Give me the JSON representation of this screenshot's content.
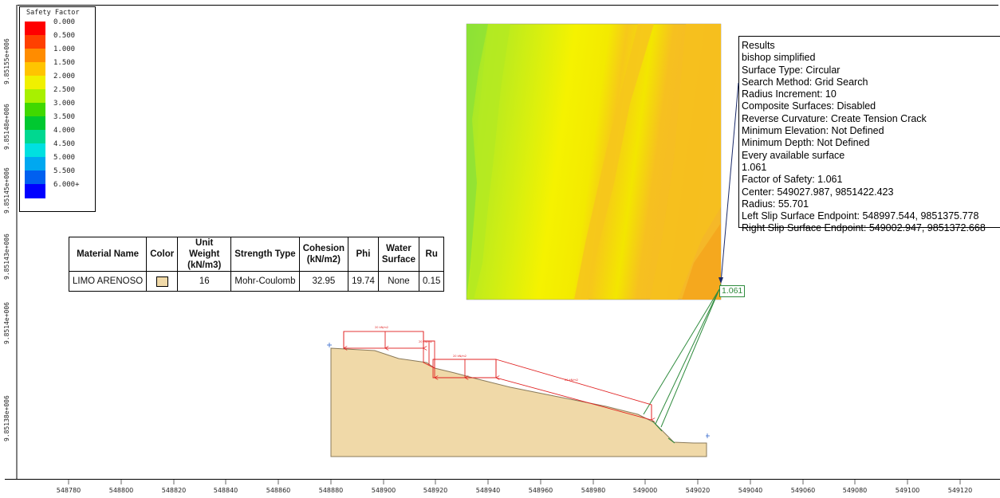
{
  "legend": {
    "title": "Safety Factor",
    "items": [
      {
        "label": "0.000",
        "color": "#ff0000"
      },
      {
        "label": "0.500",
        "color": "#ff4000"
      },
      {
        "label": "1.000",
        "color": "#ff8c00"
      },
      {
        "label": "1.500",
        "color": "#ffc400"
      },
      {
        "label": "2.000",
        "color": "#f0f000"
      },
      {
        "label": "2.500",
        "color": "#a8f000"
      },
      {
        "label": "3.000",
        "color": "#40d800"
      },
      {
        "label": "3.500",
        "color": "#00c830"
      },
      {
        "label": "4.000",
        "color": "#00d890"
      },
      {
        "label": "4.500",
        "color": "#00e0e0"
      },
      {
        "label": "5.000",
        "color": "#00a8f0"
      },
      {
        "label": "5.500",
        "color": "#0060f0"
      },
      {
        "label": "6.000+",
        "color": "#0000ff"
      }
    ]
  },
  "material_table": {
    "headers": [
      "Material Name",
      "Color",
      "Unit Weight (kN/m3)",
      "Strength Type",
      "Cohesion (kN/m2)",
      "Phi",
      "Water Surface",
      "Ru"
    ],
    "rows": [
      {
        "name": "LIMO ARENOSO",
        "color": "#f0d9a8",
        "unit_weight": "16",
        "strength_type": "Mohr-Coulomb",
        "cohesion": "32.95",
        "phi": "19.74",
        "water_surface": "None",
        "ru": "0.15"
      }
    ]
  },
  "results": {
    "lines": [
      "Results",
      "bishop simplified",
      "Surface Type: Circular",
      "Search Method: Grid Search",
      "Radius Increment: 10",
      "Composite Surfaces: Disabled",
      "Reverse Curvature: Create Tension Crack",
      "Minimum Elevation: Not Defined",
      "Minimum Depth: Not Defined",
      "Every available surface",
      "1.061",
      "Factor of Safety: 1.061",
      "Center: 549027.987, 9851422.423",
      "Radius: 55.701",
      "Left Slip Surface Endpoint: 548997.544, 9851375.778",
      "Right Slip Surface Endpoint: 549002.947, 9851372.668"
    ]
  },
  "critical_label": "1.061",
  "x_axis": {
    "labels": [
      "548780",
      "548800",
      "548820",
      "548840",
      "548860",
      "548880",
      "548900",
      "548920",
      "548940",
      "548960",
      "548980",
      "549000",
      "549020",
      "549040",
      "549060",
      "549080",
      "549100",
      "549120"
    ]
  },
  "y_axis": {
    "labels": [
      "9.85155e+006",
      "9.85148e+006",
      "9.85145e+006",
      "9.85143e+006",
      "9.8514e+006",
      "9.85138e+006"
    ]
  },
  "colors": {
    "soil": "#f0d9a8",
    "loads": "#e02020",
    "slip_lines": "#2e8b3d"
  }
}
